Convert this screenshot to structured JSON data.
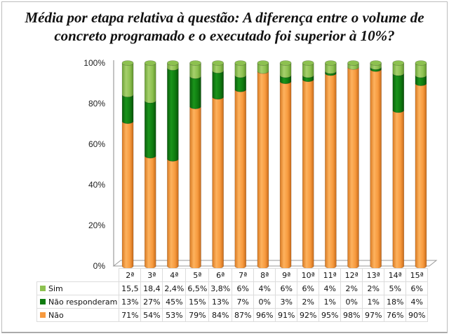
{
  "chart_data": {
    "type": "bar",
    "stacked": true,
    "style": "3d-cylinder",
    "title": "Média por etapa relativa à questão: A diferença entre o volume de concreto programado e o executado foi superior à 10%?",
    "title_lines": [
      "Média por etapa relativa à questão: A diferença entre o volume de",
      "concreto programado e o executado foi superior à 10%?"
    ],
    "xlabel": "",
    "ylabel": "",
    "ylim": [
      0,
      100
    ],
    "yticks": [
      "0%",
      "20%",
      "40%",
      "60%",
      "80%",
      "100%"
    ],
    "grid": false,
    "legend_placement": "data-table-left",
    "categories": [
      "2ª",
      "3ª",
      "4ª",
      "5ª",
      "6ª",
      "7ª",
      "8ª",
      "9ª",
      "10ª",
      "11ª",
      "12ª",
      "13ª",
      "14ª",
      "15ª"
    ],
    "series": [
      {
        "name": "Sim",
        "color": "#8dc150",
        "values": [
          15.5,
          18.4,
          2.4,
          6.5,
          3.8,
          6,
          4,
          6,
          6,
          4,
          2,
          2,
          5,
          6
        ],
        "labels": [
          "15,5",
          "18,4",
          "2,4%",
          "6,5%",
          "3,8%",
          "6%",
          "4%",
          "6%",
          "6%",
          "4%",
          "2%",
          "2%",
          "5%",
          "6%"
        ]
      },
      {
        "name": "Não responderam",
        "color": "#0f7c10",
        "values": [
          13,
          27,
          45,
          15,
          13,
          7,
          0,
          3,
          2,
          1,
          0,
          1,
          18,
          4
        ],
        "labels": [
          "13%",
          "27%",
          "45%",
          "15%",
          "13%",
          "7%",
          "0%",
          "3%",
          "2%",
          "1%",
          "0%",
          "1%",
          "18%",
          "4%"
        ]
      },
      {
        "name": "Não",
        "color": "#f79a3e",
        "values": [
          71,
          54,
          53,
          79,
          84,
          87,
          96,
          91,
          92,
          95,
          98,
          97,
          76,
          90
        ],
        "labels": [
          "71%",
          "54%",
          "53%",
          "79%",
          "84%",
          "87%",
          "96%",
          "91%",
          "92%",
          "95%",
          "98%",
          "97%",
          "76%",
          "90%"
        ]
      }
    ]
  }
}
